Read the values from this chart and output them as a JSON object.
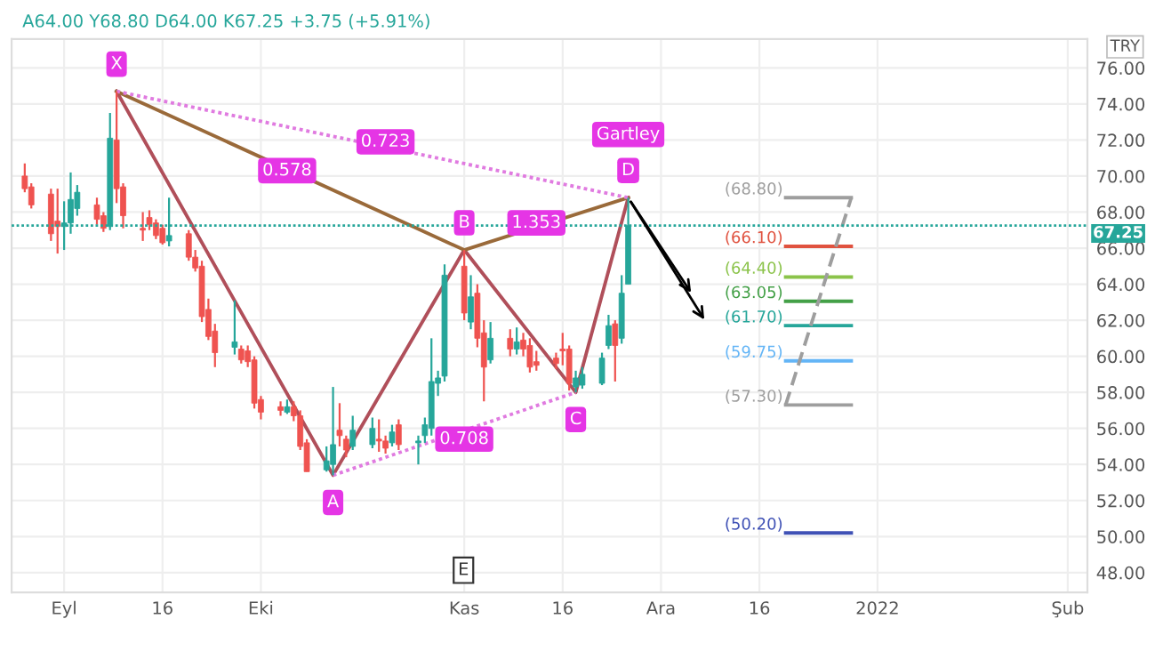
{
  "chart_data": {
    "type": "candlestick",
    "ylabel": "TRY",
    "x": [
      "2021-08-26",
      "2021-08-27",
      "2021-08-30",
      "2021-08-31",
      "2021-09-01",
      "2021-09-02",
      "2021-09-03",
      "2021-09-06",
      "2021-09-07",
      "2021-09-08",
      "2021-09-09",
      "2021-09-10",
      "2021-09-13",
      "2021-09-14",
      "2021-09-15",
      "2021-09-16",
      "2021-09-17",
      "2021-09-20",
      "2021-09-21",
      "2021-09-22",
      "2021-09-23",
      "2021-09-24",
      "2021-09-27",
      "2021-09-28",
      "2021-09-29",
      "2021-09-30",
      "2021-10-01",
      "2021-10-04",
      "2021-10-05",
      "2021-10-06",
      "2021-10-07",
      "2021-10-08",
      "2021-10-11",
      "2021-10-12",
      "2021-10-13",
      "2021-10-14",
      "2021-10-15",
      "2021-10-18",
      "2021-10-19",
      "2021-10-20",
      "2021-10-21",
      "2021-10-22",
      "2021-10-25",
      "2021-10-26",
      "2021-10-27",
      "2021-10-28",
      "2021-10-29",
      "2021-11-01",
      "2021-11-02",
      "2021-11-03",
      "2021-11-04",
      "2021-11-05",
      "2021-11-08",
      "2021-11-09",
      "2021-11-10",
      "2021-11-11",
      "2021-11-12",
      "2021-11-15",
      "2021-11-16",
      "2021-11-17",
      "2021-11-18",
      "2021-11-19",
      "2021-11-22",
      "2021-11-23",
      "2021-11-24",
      "2021-11-25",
      "2021-11-26"
    ],
    "ohlc": [
      [
        70.0,
        70.7,
        69.1,
        69.3
      ],
      [
        69.4,
        69.6,
        68.2,
        68.4
      ],
      [
        69.0,
        69.3,
        66.4,
        66.8
      ],
      [
        67.5,
        69.3,
        65.7,
        67.2
      ],
      [
        67.2,
        68.6,
        65.9,
        67.4
      ],
      [
        67.4,
        70.2,
        66.8,
        68.7
      ],
      [
        68.2,
        69.5,
        67.8,
        69.1
      ],
      [
        68.4,
        68.8,
        67.3,
        67.6
      ],
      [
        67.8,
        68.0,
        66.9,
        67.1
      ],
      [
        67.2,
        73.5,
        67.0,
        72.1
      ],
      [
        72.0,
        74.7,
        68.5,
        69.3
      ],
      [
        69.4,
        69.6,
        67.1,
        67.8
      ],
      [
        67.1,
        68.0,
        66.4,
        67.0
      ],
      [
        67.7,
        68.1,
        67.0,
        67.3
      ],
      [
        67.4,
        67.6,
        66.5,
        66.7
      ],
      [
        67.1,
        67.3,
        66.2,
        66.3
      ],
      [
        66.4,
        68.8,
        66.1,
        66.7
      ],
      [
        66.8,
        67.0,
        65.3,
        65.5
      ],
      [
        65.5,
        65.9,
        64.7,
        64.9
      ],
      [
        65.0,
        65.3,
        61.9,
        62.2
      ],
      [
        62.6,
        63.2,
        60.9,
        61.1
      ],
      [
        61.4,
        61.8,
        59.4,
        60.2
      ],
      [
        60.5,
        63.1,
        60.1,
        60.8
      ],
      [
        60.4,
        60.6,
        59.6,
        59.8
      ],
      [
        60.3,
        60.6,
        59.4,
        59.7
      ],
      [
        59.8,
        60.0,
        57.1,
        57.4
      ],
      [
        57.6,
        57.8,
        56.5,
        56.9
      ],
      [
        57.2,
        57.5,
        56.7,
        57.0
      ],
      [
        56.9,
        57.6,
        56.8,
        57.2
      ],
      [
        57.2,
        57.5,
        56.4,
        56.7
      ],
      [
        56.7,
        57.0,
        54.8,
        55.0
      ],
      [
        55.2,
        55.4,
        53.6,
        53.6
      ],
      [
        53.7,
        55.0,
        53.6,
        54.2
      ],
      [
        54.0,
        58.3,
        53.4,
        55.1
      ],
      [
        55.9,
        57.4,
        55.0,
        55.6
      ],
      [
        55.4,
        55.6,
        54.4,
        54.8
      ],
      [
        55.0,
        56.7,
        54.8,
        55.9
      ],
      [
        55.1,
        56.6,
        54.9,
        56.0
      ],
      [
        55.4,
        56.5,
        54.7,
        55.3
      ],
      [
        55.3,
        55.6,
        54.6,
        54.9
      ],
      [
        55.2,
        56.2,
        55.0,
        55.8
      ],
      [
        56.2,
        56.5,
        54.8,
        55.1
      ],
      [
        55.2,
        55.6,
        54.0,
        55.3
      ],
      [
        55.6,
        56.6,
        55.2,
        56.2
      ],
      [
        56.0,
        61.0,
        55.6,
        58.6
      ],
      [
        58.5,
        59.2,
        57.8,
        58.8
      ],
      [
        58.9,
        65.1,
        58.6,
        64.5
      ],
      [
        65.0,
        65.9,
        62.0,
        62.4
      ],
      [
        61.9,
        64.5,
        61.5,
        63.3
      ],
      [
        63.5,
        64.0,
        60.5,
        61.0
      ],
      [
        61.3,
        62.0,
        57.5,
        59.4
      ],
      [
        59.8,
        61.9,
        59.6,
        61.0
      ],
      [
        61.0,
        61.5,
        60.0,
        60.4
      ],
      [
        60.4,
        61.6,
        60.1,
        60.8
      ],
      [
        60.9,
        61.3,
        60.0,
        60.4
      ],
      [
        60.6,
        61.0,
        59.1,
        59.4
      ],
      [
        59.7,
        60.3,
        59.2,
        59.5
      ],
      [
        59.9,
        60.2,
        59.3,
        59.6
      ],
      [
        60.4,
        61.3,
        59.5,
        60.3
      ],
      [
        60.4,
        60.6,
        58.1,
        58.5
      ],
      [
        58.3,
        59.2,
        58.0,
        58.8
      ],
      [
        58.4,
        59.4,
        58.2,
        59.0
      ],
      [
        58.5,
        60.2,
        58.4,
        59.9
      ],
      [
        60.6,
        62.3,
        60.4,
        61.7
      ],
      [
        61.8,
        62.0,
        58.6,
        60.6
      ],
      [
        61.0,
        64.5,
        60.7,
        63.5
      ],
      [
        64.0,
        68.8,
        64.0,
        67.25
      ]
    ],
    "series": [
      {
        "type": "line",
        "color": "#b04f5a",
        "line_style": "solid",
        "x": [
          "2021-09-09",
          "2021-10-12",
          "2021-11-01",
          "2021-11-18",
          "2021-11-26"
        ],
        "values": [
          74.7,
          53.4,
          65.9,
          58.0,
          68.8
        ]
      },
      {
        "type": "line",
        "color": "#9a6a3a",
        "line_style": "solid",
        "x": [
          "2021-09-09",
          "2021-11-01",
          "2021-11-26"
        ],
        "values": [
          74.7,
          65.9,
          68.8
        ]
      },
      {
        "type": "line",
        "color": "#e07be0",
        "line_style": "dotted",
        "x": [
          "2021-09-09",
          "2021-11-26"
        ],
        "values": [
          74.7,
          68.8
        ]
      },
      {
        "type": "line",
        "color": "#e07be0",
        "line_style": "dotted",
        "x": [
          "2021-10-12",
          "2021-11-18"
        ],
        "values": [
          53.4,
          58.0
        ]
      },
      {
        "type": "line",
        "color": "#9e9e9e",
        "line_style": "solid",
        "x": [
          "2021-12-20",
          "2021-12-30"
        ],
        "values": [
          68.8,
          68.8
        ]
      },
      {
        "type": "line",
        "color": "#e0523f",
        "line_style": "solid",
        "x": [
          "2021-12-20",
          "2021-12-30"
        ],
        "values": [
          66.1,
          66.1
        ]
      },
      {
        "type": "line",
        "color": "#8bc34a",
        "line_style": "solid",
        "x": [
          "2021-12-20",
          "2021-12-30"
        ],
        "values": [
          64.4,
          64.4
        ]
      },
      {
        "type": "line",
        "color": "#43a047",
        "line_style": "solid",
        "x": [
          "2021-12-20",
          "2021-12-30"
        ],
        "values": [
          63.05,
          63.05
        ]
      },
      {
        "type": "line",
        "color": "#26a69a",
        "line_style": "solid",
        "x": [
          "2021-12-20",
          "2021-12-30"
        ],
        "values": [
          61.7,
          61.7
        ]
      },
      {
        "type": "line",
        "color": "#64b5f6",
        "line_style": "solid",
        "x": [
          "2021-12-20",
          "2021-12-30"
        ],
        "values": [
          59.75,
          59.75
        ]
      },
      {
        "type": "line",
        "color": "#9e9e9e",
        "line_style": "solid",
        "x": [
          "2021-12-20",
          "2021-12-30"
        ],
        "values": [
          57.3,
          57.3
        ]
      },
      {
        "type": "line",
        "color": "#3f51b5",
        "line_style": "solid",
        "x": [
          "2021-12-20",
          "2021-12-30"
        ],
        "values": [
          50.2,
          50.2
        ]
      },
      {
        "type": "line",
        "color": "#9e9e9e",
        "line_style": "dashed",
        "x": [
          "2021-12-20",
          "2021-12-30"
        ],
        "values": [
          57.3,
          68.8
        ]
      }
    ],
    "ref_lines": [
      {
        "axis": "y",
        "value": 67.25,
        "label": "67.25",
        "color": "#26a69a",
        "line_style": "dotted"
      }
    ],
    "annotations": [
      "A64.00 Y68.80 D64.00 K67.25 +3.75 (+5.91%)",
      "E",
      {
        "text": "X",
        "x": "2021-09-09",
        "y": 74.7
      },
      {
        "text": "A",
        "x": "2021-10-12",
        "y": 53.4
      },
      {
        "text": "B",
        "x": "2021-11-01",
        "y": 65.9
      },
      {
        "text": "C",
        "x": "2021-11-18",
        "y": 58.0
      },
      {
        "text": "D",
        "x": "2021-11-26",
        "y": 68.8
      },
      {
        "text": "Gartley",
        "x": "2021-11-26",
        "y": 72.3
      },
      {
        "text": "0.578",
        "x": "2021-10-05",
        "y": 70.3
      },
      {
        "text": "0.723",
        "x": "2021-10-20",
        "y": 71.9
      },
      {
        "text": "1.353",
        "x": "2021-11-12",
        "y": 67.4
      },
      {
        "text": "0.708",
        "x": "2021-11-01",
        "y": 55.4
      },
      {
        "text": "(68.80)",
        "x": "2021-12-20",
        "y": 68.8
      },
      {
        "text": "(66.10)",
        "x": "2021-12-20",
        "y": 66.1
      },
      {
        "text": "(64.40)",
        "x": "2021-12-20",
        "y": 64.4
      },
      {
        "text": "(63.05)",
        "x": "2021-12-20",
        "y": 63.05
      },
      {
        "text": "(61.70)",
        "x": "2021-12-20",
        "y": 61.7
      },
      {
        "text": "(59.75)",
        "x": "2021-12-20",
        "y": 59.75
      },
      {
        "text": "(57.30)",
        "x": "2021-12-20",
        "y": 57.3
      },
      {
        "text": "(50.20)",
        "x": "2021-12-20",
        "y": 50.2
      }
    ],
    "xlim": [
      "2021-08-24",
      "2022-02-04"
    ],
    "xticks": [
      {
        "value": "2021-09-01",
        "label": "Eyl"
      },
      {
        "value": "2021-09-16",
        "label": "16"
      },
      {
        "value": "2021-10-01",
        "label": "Eki"
      },
      {
        "value": "2021-11-01",
        "label": "Kas"
      },
      {
        "value": "2021-11-16",
        "label": "16"
      },
      {
        "value": "2021-12-01",
        "label": "Ara"
      },
      {
        "value": "2021-12-16",
        "label": "16"
      },
      {
        "value": "2022-01-03",
        "label": "2022"
      },
      {
        "value": "2022-02-01",
        "label": "Şub"
      }
    ],
    "ylim": [
      46.9,
      77.6
    ],
    "yticks": [
      {
        "value": 48,
        "label": "48.00"
      },
      {
        "value": 50,
        "label": "50.00"
      },
      {
        "value": 52,
        "label": "52.00"
      },
      {
        "value": 54,
        "label": "54.00"
      },
      {
        "value": 56,
        "label": "56.00"
      },
      {
        "value": 58,
        "label": "58.00"
      },
      {
        "value": 60,
        "label": "60.00"
      },
      {
        "value": 62,
        "label": "62.00"
      },
      {
        "value": 64,
        "label": "64.00"
      },
      {
        "value": 66,
        "label": "66.00"
      },
      {
        "value": 68,
        "label": "68.00"
      },
      {
        "value": 70,
        "label": "70.00"
      },
      {
        "value": 72,
        "label": "72.00"
      },
      {
        "value": 74,
        "label": "74.00"
      },
      {
        "value": 76,
        "label": "76.00"
      }
    ],
    "grid": true
  }
}
